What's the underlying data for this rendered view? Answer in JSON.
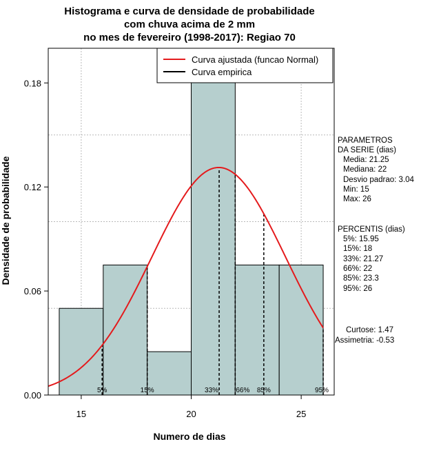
{
  "chart_data": {
    "type": "bar",
    "title_lines": [
      "Histograma e curva de densidade de probabilidade",
      "com chuva acima de 2 mm",
      "no mes de fevereiro (1998-2017): Regiao 70"
    ],
    "xlabel": "Numero de dias",
    "ylabel": "Densidade de probabilidade",
    "xlim": [
      13.5,
      26.5
    ],
    "ylim": [
      0,
      0.2
    ],
    "xticks": [
      15,
      20,
      25
    ],
    "yticks": [
      0.0,
      0.06,
      0.12,
      0.18
    ],
    "ytick_labels": [
      "0.00",
      "0.06",
      "0.12",
      "0.18"
    ],
    "grid": true,
    "bins": [
      {
        "start": 14,
        "end": 16,
        "density": 0.05
      },
      {
        "start": 16,
        "end": 18,
        "density": 0.075
      },
      {
        "start": 18,
        "end": 20,
        "density": 0.025
      },
      {
        "start": 20,
        "end": 22,
        "density": 0.2
      },
      {
        "start": 22,
        "end": 24,
        "density": 0.075
      },
      {
        "start": 24,
        "end": 26,
        "density": 0.075
      }
    ],
    "bar_color": "#b6cfce",
    "fitted_curve": {
      "name": "Curva ajustada (funcao Normal)",
      "mean": 21.25,
      "sd": 3.04,
      "color": "#e41a1c"
    },
    "empirical_curve": {
      "name": "Curva empirica",
      "color": "#000000"
    },
    "legend_position": "top-right",
    "percentile_lines": [
      {
        "label": "5%",
        "x": 15.95
      },
      {
        "label": "15%",
        "x": 18
      },
      {
        "label": "33%",
        "x": 21.27
      },
      {
        "label": "66%",
        "x": 22
      },
      {
        "label": "85%",
        "x": 23.3
      },
      {
        "label": "95%",
        "x": 26
      }
    ]
  },
  "stats": {
    "params_title": [
      "PARAMETROS",
      "DA SERIE (dias)"
    ],
    "params": [
      "Media: 21.25",
      "Mediana: 22",
      "Desvio padrao: 3.04",
      "Min: 15",
      "Max: 26"
    ],
    "percentis_title": "PERCENTIS (dias)",
    "percentis": [
      "5%: 15.95",
      "15%: 18",
      "33%: 21.27",
      "66%: 22",
      "85%: 23.3",
      "95%: 26"
    ],
    "curtose": "Curtose: 1.47",
    "assimetria": "Assimetria: -0.53"
  }
}
